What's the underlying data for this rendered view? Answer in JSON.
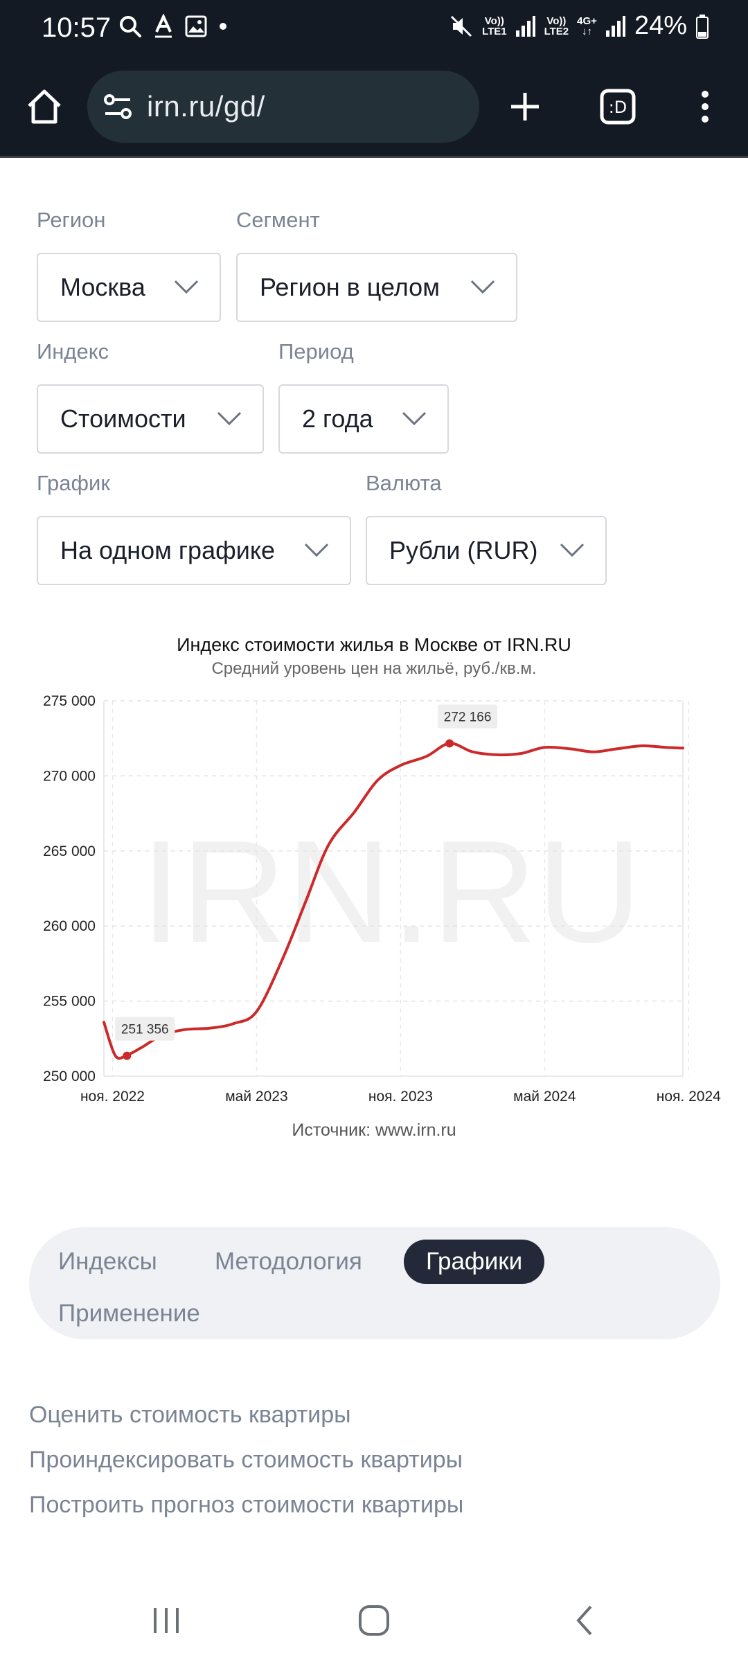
{
  "status_bar": {
    "time": "10:57",
    "battery": "24%",
    "sim1_top": "Vo))",
    "sim1_bottom": "LTE1",
    "sim2_top": "Vo))",
    "sim2_bottom": "LTE2",
    "net_type": "4G+"
  },
  "browser": {
    "url": "irn.ru/gd/"
  },
  "filters": {
    "region": {
      "label": "Регион",
      "value": "Москва"
    },
    "segment": {
      "label": "Сегмент",
      "value": "Регион в целом"
    },
    "index": {
      "label": "Индекс",
      "value": "Стоимости"
    },
    "period": {
      "label": "Период",
      "value": "2 года"
    },
    "chart": {
      "label": "График",
      "value": "На одном графике"
    },
    "currency": {
      "label": "Валюта",
      "value": "Рубли (RUR)"
    }
  },
  "chart_data": {
    "type": "line",
    "title": "Индекс стоимости жилья в Москве от IRN.RU",
    "subtitle": "Средний уровень цен на жильё, руб./кв.м.",
    "watermark": "IRN.RU",
    "source": "Источник: www.irn.ru",
    "ylim": [
      250000,
      275000
    ],
    "yticks": [
      250000,
      255000,
      260000,
      265000,
      270000,
      275000
    ],
    "ytick_labels": [
      "250 000",
      "255 000",
      "260 000",
      "265 000",
      "270 000",
      "275 000"
    ],
    "xlim": [
      2022.8,
      2024.81
    ],
    "xticks": [
      2022.83,
      2023.33,
      2023.83,
      2024.33,
      2024.83
    ],
    "xtick_labels": [
      "ноя. 2022",
      "май 2023",
      "ноя. 2023",
      "май 2024",
      "ноя. 2024"
    ],
    "line_color": "#cc2a2a",
    "grid": true,
    "series": [
      {
        "x": [
          2022.8,
          2022.84,
          2022.88,
          2022.93,
          2023.0,
          2023.08,
          2023.17,
          2023.25,
          2023.33,
          2023.42,
          2023.5,
          2023.58,
          2023.67,
          2023.75,
          2023.83,
          2023.92,
          2024.0,
          2024.08,
          2024.17,
          2024.25,
          2024.33,
          2024.42,
          2024.5,
          2024.58,
          2024.67,
          2024.75,
          2024.81
        ],
        "y": [
          253600,
          251356,
          251400,
          251900,
          252700,
          253100,
          253200,
          253500,
          254300,
          257800,
          261600,
          265400,
          267600,
          269700,
          270700,
          271300,
          272166,
          271600,
          271400,
          271500,
          271900,
          271800,
          271600,
          271800,
          272000,
          271900,
          271850
        ]
      }
    ],
    "annotations": [
      {
        "x": 2022.88,
        "y": 251356,
        "label": "251 356"
      },
      {
        "x": 2024.0,
        "y": 272166,
        "label": "272 166"
      }
    ]
  },
  "tabs": [
    {
      "label": "Индексы",
      "active": false
    },
    {
      "label": "Методология",
      "active": false
    },
    {
      "label": "Графики",
      "active": true
    },
    {
      "label": "Применение",
      "active": false
    }
  ],
  "links": [
    "Оценить стоимость квартиры",
    "Проиндексировать стоимость квартиры",
    "Построить прогноз стоимости квартиры"
  ]
}
